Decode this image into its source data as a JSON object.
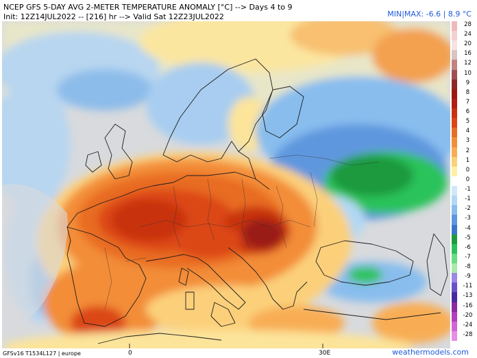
{
  "header": {
    "title": "NCEP GFS 5-DAY AVG 2-METER TEMPERATURE ANOMALY [°C] --> Days 4 to 9",
    "init": "Init: 12Z14JUL2022 -- [216] hr --> Valid Sat 12Z23JUL2022",
    "minmax": "MIN|MAX: -6.6 | 8.9 °C"
  },
  "footer": {
    "model": "GFSv16 T1534L127 | europe",
    "brand": "weathermodels.com"
  },
  "axis": {
    "lon_labels": [
      "0",
      "30E"
    ]
  },
  "legend": {
    "items": [
      {
        "label": "28",
        "color": "#f0b9b9"
      },
      {
        "label": "24",
        "color": "#f6d0d0"
      },
      {
        "label": "20",
        "color": "#f7e3e3"
      },
      {
        "label": "16",
        "color": "#d8c4c4"
      },
      {
        "label": "12",
        "color": "#c08484"
      },
      {
        "label": "10",
        "color": "#a05050"
      },
      {
        "label": "9",
        "color": "#8a2a2a"
      },
      {
        "label": "8",
        "color": "#9a1a12"
      },
      {
        "label": "7",
        "color": "#b0200e"
      },
      {
        "label": "6",
        "color": "#c8320f"
      },
      {
        "label": "5",
        "color": "#dc4616"
      },
      {
        "label": "4",
        "color": "#e86c24"
      },
      {
        "label": "3",
        "color": "#f38d38"
      },
      {
        "label": "2",
        "color": "#f8ad55"
      },
      {
        "label": "1",
        "color": "#fcd07a"
      },
      {
        "label": "0",
        "color": "#fdf0a4"
      },
      {
        "label": "0",
        "color": "#ffffff"
      },
      {
        "label": "-1",
        "color": "#d2e8f8"
      },
      {
        "label": "-1",
        "color": "#b2d8f4"
      },
      {
        "label": "-2",
        "color": "#88bdee"
      },
      {
        "label": "-3",
        "color": "#5e97de"
      },
      {
        "label": "-4",
        "color": "#3a74cc"
      },
      {
        "label": "-5",
        "color": "#1e9a3e"
      },
      {
        "label": "-6",
        "color": "#2cc25a"
      },
      {
        "label": "-7",
        "color": "#6adc82"
      },
      {
        "label": "-8",
        "color": "#a8eaa8"
      },
      {
        "label": "-9",
        "color": "#9a88e6"
      },
      {
        "label": "-11",
        "color": "#6a52c8"
      },
      {
        "label": "-13",
        "color": "#4a2aa0"
      },
      {
        "label": "-16",
        "color": "#8a2aa0"
      },
      {
        "label": "-20",
        "color": "#b43ec0"
      },
      {
        "label": "-24",
        "color": "#d064d6"
      },
      {
        "label": "-28",
        "color": "#e68ee6"
      }
    ]
  }
}
